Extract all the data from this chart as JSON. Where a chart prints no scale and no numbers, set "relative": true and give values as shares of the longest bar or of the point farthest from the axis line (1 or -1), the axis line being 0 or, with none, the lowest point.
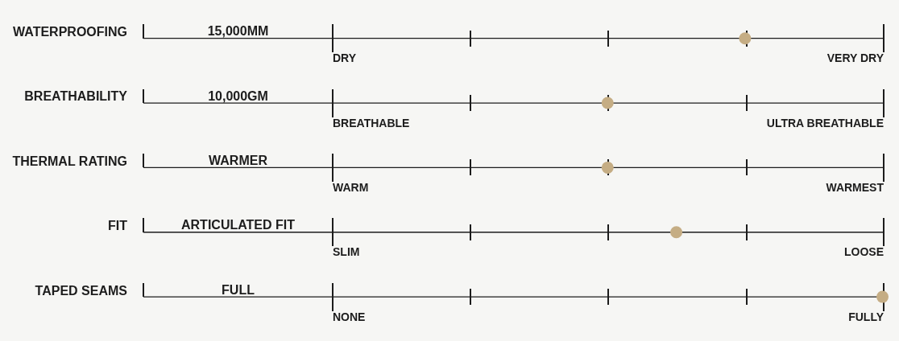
{
  "chart_data": {
    "type": "scatter",
    "orientation": "horizontal",
    "relative": true,
    "color": "#c5ad84",
    "marker": "circle",
    "categories": [
      "WATERPROOFING",
      "BREATHABILITY",
      "THERMAL RATING",
      "FIT",
      "TAPED SEAMS"
    ],
    "values": [
      0.5,
      0,
      0,
      0.25,
      1
    ],
    "annotations": [
      "15,000MM",
      "DRY",
      "VERY DRY",
      "10,000GM",
      "BREATHABLE",
      "ULTRA BREATHABLE",
      "WARMER",
      "WARM",
      "WARMEST",
      "ARTICULATED FIT",
      "SLIM",
      "LOOSE",
      "FULL",
      "NONE",
      "FULLY"
    ]
  }
}
